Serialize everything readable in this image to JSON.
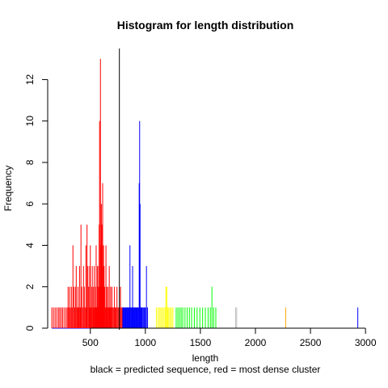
{
  "chart_data": {
    "type": "bar",
    "title": "Histogram for length distribution",
    "xlabel": "length",
    "ylabel": "Frequency",
    "subtitle": "black = predicted sequence, red = most dense cluster",
    "xlim": [
      120,
      2940
    ],
    "ylim": [
      0,
      13.5
    ],
    "x_ticks": [
      500,
      1000,
      1500,
      2000,
      2500,
      3000
    ],
    "y_ticks": [
      0,
      2,
      4,
      6,
      8,
      10,
      12
    ],
    "grid": false,
    "marker": {
      "name": "predicted sequence",
      "x": 764,
      "color": "#000000"
    },
    "series": [
      {
        "color": "#ff0000",
        "values": [
          [
            150,
            1
          ],
          [
            165,
            1
          ],
          [
            180,
            1
          ],
          [
            195,
            1
          ],
          [
            210,
            1
          ],
          [
            222,
            1
          ],
          [
            235,
            1
          ],
          [
            248,
            1
          ],
          [
            262,
            1
          ],
          [
            278,
            1
          ],
          [
            290,
            1
          ],
          [
            298,
            2
          ],
          [
            305,
            1
          ],
          [
            312,
            2
          ],
          [
            320,
            1
          ],
          [
            328,
            2
          ],
          [
            335,
            1
          ],
          [
            342,
            4
          ],
          [
            350,
            2
          ],
          [
            358,
            1
          ],
          [
            365,
            2
          ],
          [
            372,
            3
          ],
          [
            380,
            1
          ],
          [
            388,
            2
          ],
          [
            395,
            1
          ],
          [
            402,
            3
          ],
          [
            410,
            1
          ],
          [
            415,
            5
          ],
          [
            422,
            2
          ],
          [
            430,
            1
          ],
          [
            438,
            3
          ],
          [
            445,
            2
          ],
          [
            452,
            1
          ],
          [
            460,
            4
          ],
          [
            465,
            1
          ],
          [
            470,
            5
          ],
          [
            478,
            3
          ],
          [
            485,
            2
          ],
          [
            490,
            1
          ],
          [
            495,
            3
          ],
          [
            500,
            4
          ],
          [
            505,
            1
          ],
          [
            512,
            2
          ],
          [
            518,
            3
          ],
          [
            525,
            1
          ],
          [
            530,
            2
          ],
          [
            536,
            3
          ],
          [
            542,
            1
          ],
          [
            548,
            2
          ],
          [
            553,
            4
          ],
          [
            558,
            1
          ],
          [
            564,
            3
          ],
          [
            568,
            2
          ],
          [
            572,
            1
          ],
          [
            576,
            3
          ],
          [
            580,
            5
          ],
          [
            584,
            10
          ],
          [
            588,
            2
          ],
          [
            592,
            13
          ],
          [
            596,
            4
          ],
          [
            600,
            6
          ],
          [
            604,
            5
          ],
          [
            608,
            3
          ],
          [
            612,
            7
          ],
          [
            616,
            2
          ],
          [
            620,
            4
          ],
          [
            625,
            3
          ],
          [
            630,
            2
          ],
          [
            636,
            1
          ],
          [
            642,
            4
          ],
          [
            648,
            2
          ],
          [
            654,
            1
          ],
          [
            660,
            2
          ],
          [
            666,
            1
          ],
          [
            672,
            3
          ],
          [
            678,
            1
          ],
          [
            684,
            2
          ],
          [
            690,
            1
          ],
          [
            696,
            2
          ],
          [
            702,
            1
          ],
          [
            710,
            1
          ],
          [
            718,
            2
          ],
          [
            726,
            1
          ],
          [
            734,
            1
          ],
          [
            742,
            2
          ],
          [
            750,
            1
          ],
          [
            758,
            1
          ],
          [
            766,
            1
          ],
          [
            774,
            2
          ],
          [
            782,
            1
          ],
          [
            790,
            1
          ]
        ]
      },
      {
        "color": "#0000ff",
        "values": [
          [
            795,
            1
          ],
          [
            800,
            1
          ],
          [
            806,
            1
          ],
          [
            812,
            1
          ],
          [
            818,
            1
          ],
          [
            824,
            1
          ],
          [
            830,
            1
          ],
          [
            836,
            1
          ],
          [
            842,
            1
          ],
          [
            848,
            1
          ],
          [
            854,
            1
          ],
          [
            860,
            4
          ],
          [
            866,
            1
          ],
          [
            872,
            1
          ],
          [
            878,
            1
          ],
          [
            884,
            3
          ],
          [
            890,
            1
          ],
          [
            896,
            1
          ],
          [
            902,
            1
          ],
          [
            908,
            1
          ],
          [
            914,
            1
          ],
          [
            920,
            1
          ],
          [
            926,
            1
          ],
          [
            932,
            1
          ],
          [
            938,
            1
          ],
          [
            944,
            7
          ],
          [
            948,
            10
          ],
          [
            952,
            6
          ],
          [
            958,
            1
          ],
          [
            964,
            1
          ],
          [
            970,
            1
          ],
          [
            978,
            1
          ],
          [
            986,
            1
          ],
          [
            994,
            1
          ],
          [
            1002,
            1
          ],
          [
            1010,
            3
          ],
          [
            1020,
            1
          ]
        ]
      },
      {
        "color": "#ffff00",
        "values": [
          [
            1100,
            1
          ],
          [
            1115,
            1
          ],
          [
            1128,
            1
          ],
          [
            1140,
            1
          ],
          [
            1152,
            1
          ],
          [
            1165,
            1
          ],
          [
            1178,
            1
          ],
          [
            1186,
            2
          ],
          [
            1195,
            2
          ],
          [
            1204,
            1
          ],
          [
            1213,
            1
          ],
          [
            1225,
            1
          ],
          [
            1238,
            1
          ],
          [
            1250,
            1
          ]
        ]
      },
      {
        "color": "#00ff00",
        "values": [
          [
            1280,
            1
          ],
          [
            1295,
            1
          ],
          [
            1310,
            1
          ],
          [
            1325,
            1
          ],
          [
            1340,
            1
          ],
          [
            1360,
            1
          ],
          [
            1380,
            1
          ],
          [
            1400,
            1
          ],
          [
            1420,
            1
          ],
          [
            1445,
            1
          ],
          [
            1470,
            1
          ],
          [
            1495,
            1
          ],
          [
            1520,
            1
          ],
          [
            1545,
            1
          ],
          [
            1570,
            1
          ],
          [
            1590,
            1
          ],
          [
            1605,
            2
          ],
          [
            1620,
            1
          ],
          [
            1640,
            1
          ]
        ]
      },
      {
        "color": "#bebebe",
        "values": [
          [
            1820,
            1
          ],
          [
            1830,
            1
          ]
        ]
      },
      {
        "color": "#ffa500",
        "values": [
          [
            2275,
            1
          ]
        ]
      },
      {
        "color": "#0000ff",
        "values": [
          [
            2930,
            1
          ]
        ]
      }
    ]
  }
}
